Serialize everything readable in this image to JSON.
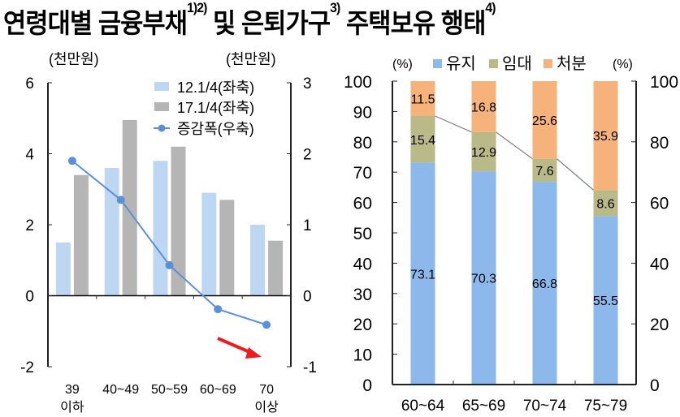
{
  "title": {
    "parts": [
      {
        "text": "연령대별 금융부채",
        "sup": "1)2)"
      },
      {
        "text": " 및 은퇴가구",
        "sup": "3)"
      },
      {
        "text": " 주택보유 행태",
        "sup": "4)"
      }
    ]
  },
  "chart_data": [
    {
      "type": "bar+line",
      "categories": [
        "39\n이하",
        "40~49",
        "50~59",
        "60~69",
        "70\n이상"
      ],
      "left_unit": "(천만원)",
      "right_unit": "(천만원)",
      "ylim_left": [
        -2,
        6
      ],
      "yticks_left": [
        -2,
        0,
        2,
        4,
        6
      ],
      "ylim_right": [
        -1,
        3
      ],
      "yticks_right": [
        -1,
        0,
        1,
        2,
        3
      ],
      "legend_placement": "top-right",
      "series": [
        {
          "name": "12.1/4(좌축)",
          "type": "bar",
          "axis": "left",
          "color": "#bdd7f2",
          "values": [
            1.5,
            3.6,
            3.8,
            2.9,
            2.0
          ]
        },
        {
          "name": "17.1/4(좌축)",
          "type": "bar",
          "axis": "left",
          "color": "#b5b5b5",
          "values": [
            3.4,
            4.95,
            4.2,
            2.7,
            1.55
          ]
        },
        {
          "name": "증감폭(우축)",
          "type": "line",
          "axis": "right",
          "color": "#5b8fd6",
          "values": [
            1.9,
            1.35,
            0.43,
            -0.19,
            -0.41
          ]
        }
      ],
      "annotation": {
        "type": "arrow",
        "color": "#ee1c1c"
      }
    },
    {
      "type": "stacked-bar",
      "categories": [
        "60~64",
        "65~69",
        "70~74",
        "75~79"
      ],
      "left_unit": "(%)",
      "right_unit": "(%)",
      "ylim": [
        0,
        100
      ],
      "yticks_left": [
        0,
        10,
        20,
        30,
        40,
        50,
        60,
        70,
        80,
        90,
        100
      ],
      "yticks_right": [
        0,
        20,
        40,
        60,
        80,
        100
      ],
      "legend_placement": "top",
      "series": [
        {
          "name": "유지",
          "color": "#8db8ec",
          "values": [
            73.1,
            70.3,
            66.8,
            55.5
          ]
        },
        {
          "name": "임대",
          "color": "#b9ba88",
          "values": [
            15.4,
            12.9,
            7.6,
            8.6
          ]
        },
        {
          "name": "처분",
          "color": "#f5b27a",
          "values": [
            11.5,
            16.8,
            25.6,
            35.9
          ]
        }
      ],
      "connector_color": "#808080"
    }
  ]
}
